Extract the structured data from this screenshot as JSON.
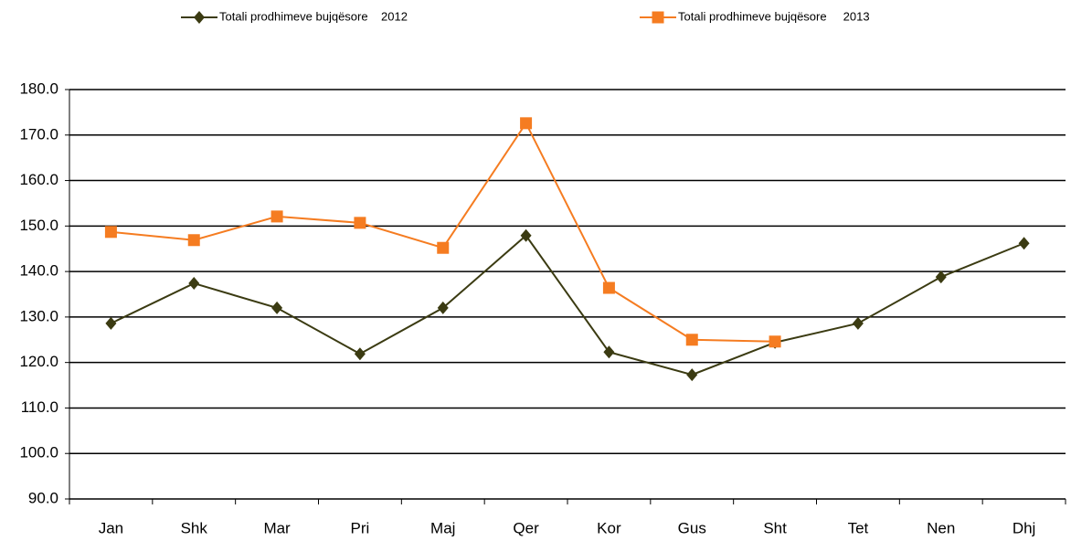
{
  "chart_data": {
    "type": "line",
    "categories": [
      "Jan",
      "Shk",
      "Mar",
      "Pri",
      "Maj",
      "Qer",
      "Kor",
      "Gus",
      "Sht",
      "Tet",
      "Nen",
      "Dhj"
    ],
    "series": [
      {
        "name": "Totali prodhimeve bujqësore    2012",
        "color": "#3b3b12",
        "marker": "diamond",
        "values": [
          128.6,
          137.4,
          132.0,
          121.9,
          132.0,
          147.9,
          122.3,
          117.3,
          124.4,
          128.6,
          138.8,
          146.2
        ]
      },
      {
        "name": "Totali prodhimeve bujqësore     2013",
        "color": "#f57c21",
        "marker": "square",
        "values": [
          148.7,
          146.9,
          152.1,
          150.7,
          145.2,
          172.6,
          136.4,
          125.0,
          124.6,
          null,
          null,
          null
        ]
      }
    ],
    "ylim": [
      90,
      180
    ],
    "yticks": [
      {
        "value": 90,
        "label": "90.0"
      },
      {
        "value": 100,
        "label": "100.0"
      },
      {
        "value": 110,
        "label": "110.0"
      },
      {
        "value": 120,
        "label": "120.0"
      },
      {
        "value": 130,
        "label": "130.0"
      },
      {
        "value": 140,
        "label": "140.0"
      },
      {
        "value": 150,
        "label": "150.0"
      },
      {
        "value": 160,
        "label": "160.0"
      },
      {
        "value": 170,
        "label": "170.0"
      },
      {
        "value": 180,
        "label": "180.0"
      }
    ],
    "grid": true
  }
}
